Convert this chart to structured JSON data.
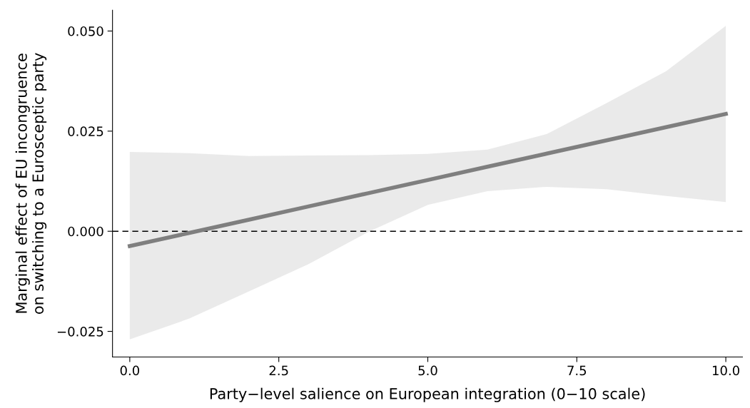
{
  "chart_data": {
    "type": "line",
    "xlabel": "Party−level salience on European integration (0−10 scale)",
    "ylabel": "Marginal effect of EU incongruence\non switching to a Eurosceptic party",
    "series": [
      {
        "color": "#7f7f7f",
        "x": [
          0,
          1,
          2,
          3,
          4,
          5,
          6,
          7,
          8,
          9,
          10
        ],
        "values": [
          -0.0037,
          -0.0004,
          0.0029,
          0.0062,
          0.0095,
          0.0128,
          0.0161,
          0.0194,
          0.0227,
          0.026,
          0.0293
        ],
        "lower": [
          -0.027,
          -0.0218,
          -0.015,
          -0.0082,
          -0.0002,
          0.0066,
          0.01,
          0.0111,
          0.0105,
          0.0088,
          0.0073
        ],
        "upper": [
          0.0198,
          0.0195,
          0.0188,
          0.0189,
          0.019,
          0.0193,
          0.0204,
          0.0243,
          0.032,
          0.04,
          0.0513
        ]
      }
    ],
    "xlim": [
      -0.29,
      10.28
    ],
    "ylim": [
      -0.0314,
      0.0552
    ],
    "xticks": [
      {
        "value": 0,
        "label": "0.0"
      },
      {
        "value": 2.5,
        "label": "2.5"
      },
      {
        "value": 5,
        "label": "5.0"
      },
      {
        "value": 7.5,
        "label": "7.5"
      },
      {
        "value": 10,
        "label": "10.0"
      }
    ],
    "yticks": [
      {
        "value": -0.025,
        "label": "−0.025"
      },
      {
        "value": 0,
        "label": "0.000"
      },
      {
        "value": 0.025,
        "label": "0.025"
      },
      {
        "value": 0.05,
        "label": "0.050"
      }
    ],
    "ref_lines": [
      {
        "axis": "y",
        "value": 0,
        "color": "#000000",
        "line_style": "dashed"
      }
    ],
    "grid": false,
    "legend": false,
    "marker": "none",
    "line_style": "solid"
  }
}
